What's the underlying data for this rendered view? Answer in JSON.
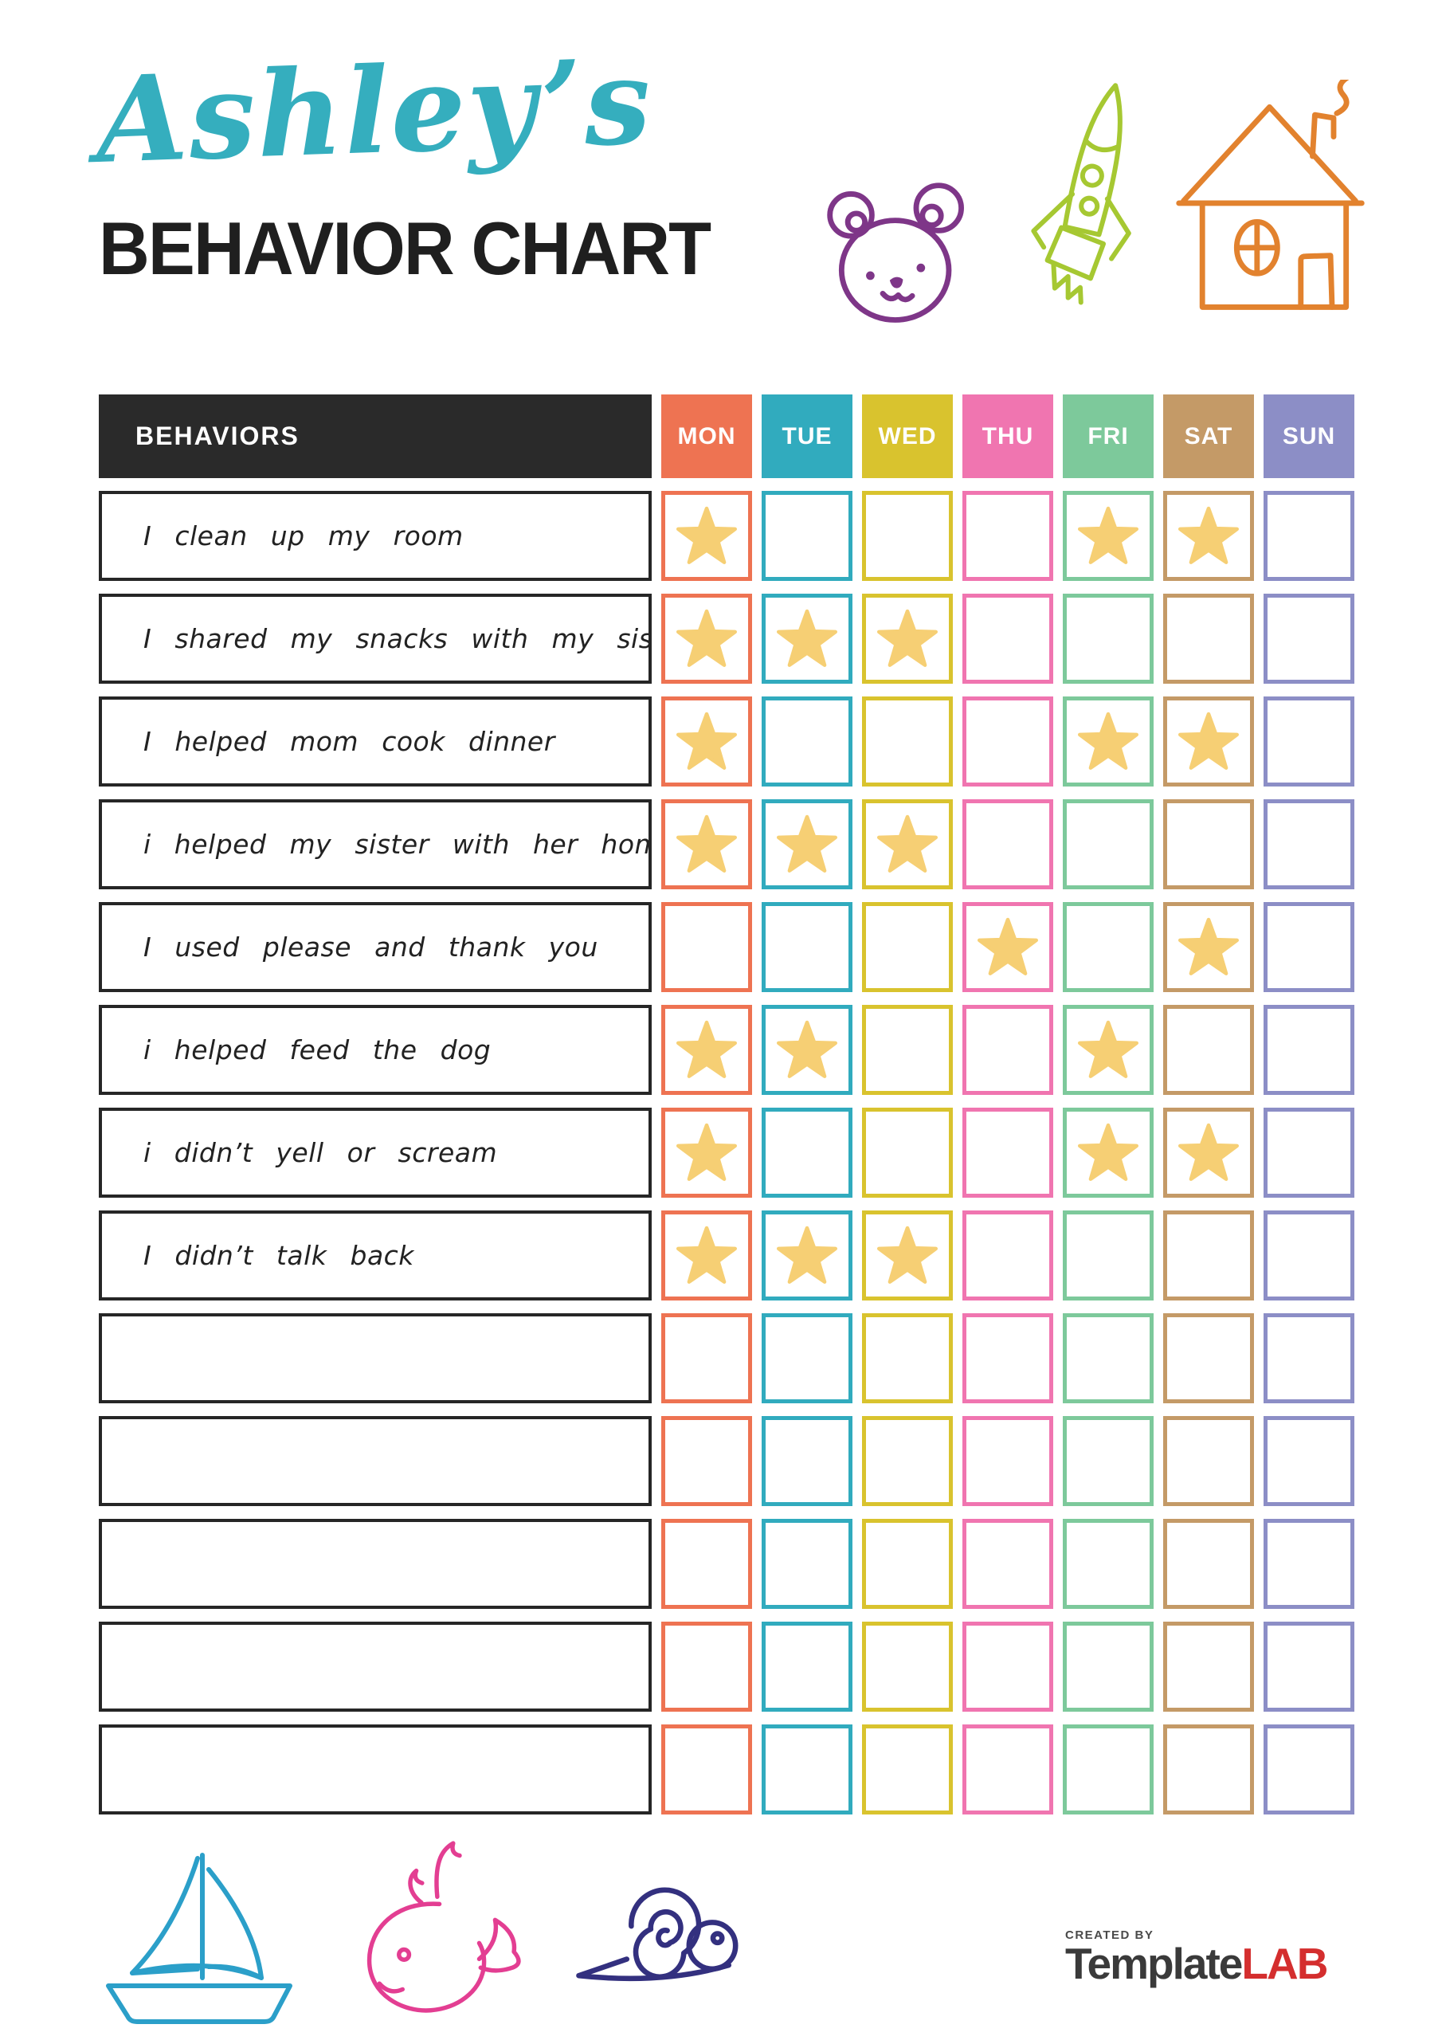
{
  "title": {
    "name": "Ashley’s",
    "subtitle": "BEHAVIOR CHART",
    "name_color": "#35AEBE",
    "subtitle_color": "#1F1F1F"
  },
  "doodles": {
    "top": [
      {
        "name": "teddy-bear",
        "color": "#7E3688"
      },
      {
        "name": "rocket",
        "color": "#A6C832"
      },
      {
        "name": "house",
        "color": "#E2822E"
      }
    ],
    "bottom": [
      {
        "name": "sailboat",
        "color": "#2B9FC9"
      },
      {
        "name": "whale",
        "color": "#E33E92"
      },
      {
        "name": "snail",
        "color": "#33307F"
      }
    ]
  },
  "chart": {
    "header_label": "BEHAVIORS",
    "header_background": "#2A2A2A",
    "star_color": "#F6CF74",
    "days": [
      {
        "label": "MON",
        "color": "#EE7352"
      },
      {
        "label": "TUE",
        "color": "#31ABBE"
      },
      {
        "label": "WED",
        "color": "#D9C32E"
      },
      {
        "label": "THU",
        "color": "#F075B0"
      },
      {
        "label": "FRI",
        "color": "#7DC99B"
      },
      {
        "label": "SAT",
        "color": "#C49A67"
      },
      {
        "label": "SUN",
        "color": "#8C8EC6"
      }
    ],
    "rows": [
      {
        "label": "I clean up my room",
        "stars": [
          1,
          0,
          0,
          0,
          1,
          1,
          0
        ]
      },
      {
        "label": "I shared my snacks with my sister",
        "stars": [
          1,
          1,
          1,
          0,
          0,
          0,
          0
        ]
      },
      {
        "label": "I helped mom cook dinner",
        "stars": [
          1,
          0,
          0,
          0,
          1,
          1,
          0
        ]
      },
      {
        "label": "i helped my sister with her homework",
        "stars": [
          1,
          1,
          1,
          0,
          0,
          0,
          0
        ]
      },
      {
        "label": "I used please and thank you",
        "stars": [
          0,
          0,
          0,
          1,
          0,
          1,
          0
        ]
      },
      {
        "label": "i helped feed the dog",
        "stars": [
          1,
          1,
          0,
          0,
          1,
          0,
          0
        ]
      },
      {
        "label": "i didn’t yell or scream",
        "stars": [
          1,
          0,
          0,
          0,
          1,
          1,
          0
        ]
      },
      {
        "label": "I didn’t talk back",
        "stars": [
          1,
          1,
          1,
          0,
          0,
          0,
          0
        ]
      },
      {
        "label": "",
        "stars": [
          0,
          0,
          0,
          0,
          0,
          0,
          0
        ]
      },
      {
        "label": "",
        "stars": [
          0,
          0,
          0,
          0,
          0,
          0,
          0
        ]
      },
      {
        "label": "",
        "stars": [
          0,
          0,
          0,
          0,
          0,
          0,
          0
        ]
      },
      {
        "label": "",
        "stars": [
          0,
          0,
          0,
          0,
          0,
          0,
          0
        ]
      },
      {
        "label": "",
        "stars": [
          0,
          0,
          0,
          0,
          0,
          0,
          0
        ]
      }
    ]
  },
  "footer": {
    "created_by": "CREATED BY",
    "brand_template": "Template",
    "brand_lab": "LAB",
    "brand_template_color": "#3A3A3A",
    "brand_lab_color": "#D42E2E"
  }
}
